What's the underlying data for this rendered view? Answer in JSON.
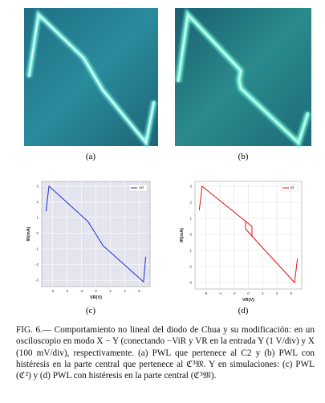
{
  "panels": {
    "a": "(a)",
    "b": "(b)",
    "c": "(c)",
    "d": "(d)"
  },
  "chart_data": [
    {
      "type": "line",
      "xlabel": "VR(V)",
      "ylabel": "IR(mA)",
      "xlim": [
        -7.5,
        7.5
      ],
      "ylim": [
        -3.4,
        3.3
      ],
      "xticks": [
        -6,
        -4,
        -2,
        0,
        2,
        4,
        6
      ],
      "yticks": [
        -3,
        -2,
        -1,
        0,
        1,
        2,
        3
      ],
      "grid": true,
      "background": "#e4e4ee",
      "grid_color": "#ffffff",
      "legend": "upper right",
      "series": [
        {
          "name": "VR",
          "color": "#1a2fd0",
          "x": [
            -6.9,
            -6.5,
            -1.1,
            1.0,
            6.6,
            6.9
          ],
          "values": [
            1.4,
            3.0,
            0.75,
            -0.8,
            -3.1,
            -1.5
          ]
        }
      ]
    },
    {
      "type": "line",
      "xlabel": "VR(V)",
      "ylabel": "IR(mA)",
      "xlim": [
        -7.5,
        7.5
      ],
      "ylim": [
        -3.4,
        3.3
      ],
      "xticks": [
        -6,
        -4,
        -2,
        0,
        2,
        4,
        6
      ],
      "yticks": [
        -3,
        -2,
        -1,
        0,
        1,
        2,
        3
      ],
      "grid": true,
      "background": "#ffffff",
      "grid_color": "#e2e2e2",
      "legend": "upper right",
      "series": [
        {
          "name": "IR",
          "color": "#e01010",
          "x": [
            -6.9,
            -6.5,
            0.5,
            0.5,
            -0.4,
            -0.4,
            null,
            0.5,
            6.5,
            6.9
          ],
          "values": [
            1.5,
            3.0,
            0.5,
            -0.1,
            0.35,
            0.82,
            null,
            -0.1,
            -3.0,
            -1.5
          ]
        }
      ]
    }
  ],
  "caption": "FIG. 6.— Comportamiento no lineal del diodo de Chua y su modificación: en un osciloscopio en modo X − Y (conectando −ViR y VR en la entrada Y (1 V/div) y X (100 mV/div), respectivamente. (a) PWL que pertenece al C2 y (b) PWL con histéresis en la parte central que pertenece al ℭ³𝔐. Y en simulaciones: (c) PWL (ℭ²) y (d) PWL con histéresis en la parte central (ℭ³𝔐)."
}
